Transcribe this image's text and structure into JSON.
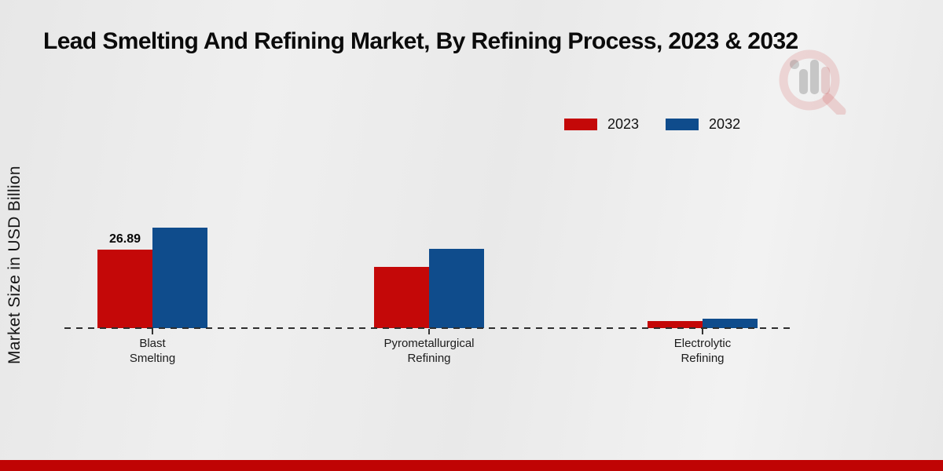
{
  "page": {
    "background_color": "#ebebeb",
    "bottom_band_color": "#bf0404"
  },
  "header": {
    "title": "Lead Smelting And Refining Market, By Refining Process, 2023 & 2032"
  },
  "watermark": {
    "description": "market-research-firm logo, faint magnifying glass with bar chart",
    "ring_color": "#cc3b3b",
    "bars_color": "#8a8a8a"
  },
  "chart_data": {
    "type": "bar",
    "title": "Lead Smelting And Refining Market, By Refining Process, 2023 & 2032",
    "xlabel": "",
    "ylabel": "Market Size in USD Billion",
    "ylim": [
      0,
      40
    ],
    "grid": false,
    "legend_position": "top-right",
    "baseline_style": "dashed",
    "categories": [
      "Blast Smelting",
      "Pyrometallurgical Refining",
      "Electrolytic Refining"
    ],
    "category_label_lines": [
      [
        "Blast",
        "Smelting"
      ],
      [
        "Pyrometallurgical",
        "Refining"
      ],
      [
        "Electrolytic",
        "Refining"
      ]
    ],
    "series": [
      {
        "name": "2023",
        "color": "#c40808",
        "values": [
          26.89,
          21.0,
          2.4
        ]
      },
      {
        "name": "2032",
        "color": "#0f4c8c",
        "values": [
          34.4,
          27.2,
          3.2
        ]
      }
    ],
    "data_labels": [
      {
        "series_index": 0,
        "category_index": 0,
        "text": "26.89"
      }
    ]
  }
}
